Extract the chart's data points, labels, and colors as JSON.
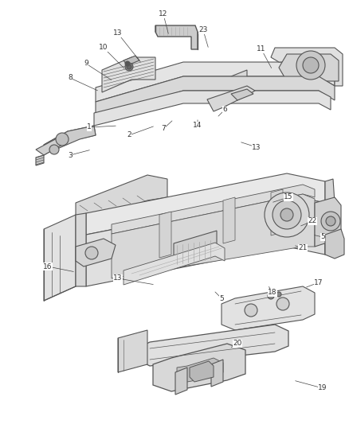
{
  "background_color": "#ffffff",
  "line_color": "#555555",
  "label_color": "#333333",
  "fig_width": 4.38,
  "fig_height": 5.33,
  "dpi": 100,
  "labels": {
    "12": [
      188,
      18,
      205,
      42
    ],
    "13": [
      155,
      42,
      183,
      78
    ],
    "10": [
      133,
      62,
      162,
      88
    ],
    "9": [
      113,
      80,
      145,
      102
    ],
    "8": [
      95,
      98,
      128,
      116
    ],
    "23": [
      248,
      38,
      270,
      62
    ],
    "11": [
      320,
      65,
      330,
      88
    ],
    "6": [
      278,
      138,
      268,
      148
    ],
    "14": [
      248,
      155,
      248,
      148
    ],
    "7": [
      205,
      158,
      220,
      148
    ],
    "2": [
      168,
      168,
      200,
      158
    ],
    "1": [
      118,
      160,
      155,
      158
    ],
    "3": [
      95,
      190,
      120,
      188
    ],
    "13a": [
      320,
      185,
      295,
      178
    ],
    "15": [
      355,
      248,
      330,
      255
    ],
    "22": [
      385,
      278,
      370,
      288
    ],
    "5a": [
      400,
      298,
      388,
      295
    ],
    "21": [
      378,
      308,
      365,
      308
    ],
    "13b": [
      155,
      348,
      205,
      360
    ],
    "16": [
      68,
      332,
      105,
      342
    ],
    "5b": [
      278,
      372,
      268,
      365
    ],
    "18": [
      345,
      368,
      335,
      355
    ],
    "17": [
      395,
      355,
      375,
      360
    ],
    "20": [
      298,
      432,
      285,
      438
    ],
    "19": [
      400,
      488,
      360,
      478
    ]
  }
}
